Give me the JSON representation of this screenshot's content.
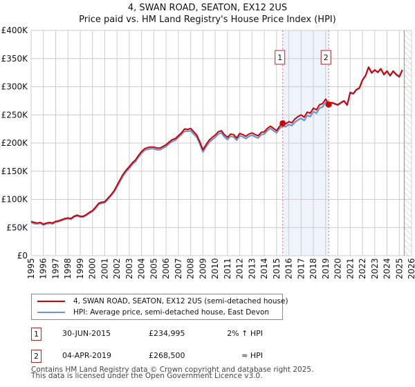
{
  "chart_data": {
    "type": "line",
    "title": "4, SWAN ROAD, SEATON, EX12 2US",
    "subtitle": "Price paid vs. HM Land Registry's House Price Index (HPI)",
    "xlabel": "",
    "ylabel": "",
    "xlim": [
      1995,
      2026
    ],
    "ylim": [
      0,
      400000
    ],
    "grid": true,
    "x_ticks": [
      "1995",
      "1996",
      "1997",
      "1998",
      "1999",
      "2000",
      "2001",
      "2002",
      "2003",
      "2004",
      "2005",
      "2006",
      "2007",
      "2008",
      "2009",
      "2010",
      "2011",
      "2012",
      "2013",
      "2014",
      "2015",
      "2016",
      "2017",
      "2018",
      "2019",
      "2020",
      "2021",
      "2022",
      "2023",
      "2024",
      "2025",
      "2026"
    ],
    "y_ticks": [
      {
        "value": 0,
        "label": "£0"
      },
      {
        "value": 50000,
        "label": "£50K"
      },
      {
        "value": 100000,
        "label": "£100K"
      },
      {
        "value": 150000,
        "label": "£150K"
      },
      {
        "value": 200000,
        "label": "£200K"
      },
      {
        "value": 250000,
        "label": "£250K"
      },
      {
        "value": 300000,
        "label": "£300K"
      },
      {
        "value": 350000,
        "label": "£350K"
      },
      {
        "value": 400000,
        "label": "£400K"
      }
    ],
    "series": [
      {
        "name": "4, SWAN ROAD, SEATON, EX12 2US (semi-detached house)",
        "color": "#cc0000",
        "x": [
          1995.0,
          1995.25,
          1995.5,
          1995.75,
          1996.0,
          1996.25,
          1996.5,
          1996.75,
          1997.0,
          1997.25,
          1997.5,
          1997.75,
          1998.0,
          1998.25,
          1998.5,
          1998.75,
          1999.0,
          1999.25,
          1999.5,
          1999.75,
          2000.0,
          2000.25,
          2000.5,
          2000.75,
          2001.0,
          2001.25,
          2001.5,
          2001.75,
          2002.0,
          2002.25,
          2002.5,
          2002.75,
          2003.0,
          2003.25,
          2003.5,
          2003.75,
          2004.0,
          2004.25,
          2004.5,
          2004.75,
          2005.0,
          2005.25,
          2005.5,
          2005.75,
          2006.0,
          2006.25,
          2006.5,
          2006.75,
          2007.0,
          2007.25,
          2007.5,
          2007.75,
          2008.0,
          2008.25,
          2008.5,
          2008.75,
          2009.0,
          2009.25,
          2009.5,
          2009.75,
          2010.0,
          2010.25,
          2010.5,
          2010.75,
          2011.0,
          2011.25,
          2011.5,
          2011.75,
          2012.0,
          2012.25,
          2012.5,
          2012.75,
          2013.0,
          2013.25,
          2013.5,
          2013.75,
          2014.0,
          2014.25,
          2014.5,
          2014.75,
          2015.0,
          2015.25,
          2015.5,
          2015.75,
          2016.0,
          2016.25,
          2016.5,
          2016.75,
          2017.0,
          2017.25,
          2017.5,
          2017.75,
          2018.0,
          2018.25,
          2018.5,
          2018.75,
          2019.0,
          2019.25,
          2019.5,
          2019.75,
          2020.0,
          2020.25,
          2020.5,
          2020.75,
          2021.0,
          2021.25,
          2021.5,
          2021.75,
          2022.0,
          2022.25,
          2022.5,
          2022.75,
          2023.0,
          2023.25,
          2023.5,
          2023.75,
          2024.0,
          2024.25,
          2024.5,
          2024.75,
          2025.0,
          2025.25
        ],
        "values": [
          61000,
          59000,
          58000,
          59000,
          56000,
          58000,
          59000,
          58000,
          61000,
          62000,
          64000,
          66000,
          67000,
          66000,
          70000,
          72000,
          70000,
          70000,
          73000,
          77000,
          80000,
          86000,
          93000,
          95000,
          96000,
          102000,
          108000,
          115000,
          125000,
          135000,
          145000,
          152000,
          158000,
          165000,
          170000,
          178000,
          185000,
          190000,
          192000,
          193000,
          193000,
          191000,
          191000,
          194000,
          197000,
          202000,
          206000,
          208000,
          213000,
          218000,
          225000,
          224000,
          226000,
          220000,
          214000,
          202000,
          188000,
          197000,
          205000,
          210000,
          214000,
          220000,
          222000,
          215000,
          210000,
          216000,
          215000,
          209000,
          217000,
          215000,
          212000,
          216000,
          218000,
          215000,
          213000,
          219000,
          220000,
          226000,
          230000,
          226000,
          222000,
          230000,
          235000,
          234000,
          238000,
          236000,
          243000,
          247000,
          250000,
          246000,
          255000,
          253000,
          262000,
          259000,
          268000,
          270000,
          278000,
          268500,
          272000,
          270000,
          268000,
          272000,
          275000,
          268000,
          290000,
          288000,
          295000,
          298000,
          312000,
          320000,
          335000,
          325000,
          330000,
          326000,
          332000,
          322000,
          328000,
          320000,
          328000,
          322000,
          318000,
          330000
        ]
      },
      {
        "name": "HPI: Average price, semi-detached house, East Devon",
        "color": "#6a95d4",
        "x": [
          1995.0,
          1995.25,
          1995.5,
          1995.75,
          1996.0,
          1996.25,
          1996.5,
          1996.75,
          1997.0,
          1997.25,
          1997.5,
          1997.75,
          1998.0,
          1998.25,
          1998.5,
          1998.75,
          1999.0,
          1999.25,
          1999.5,
          1999.75,
          2000.0,
          2000.25,
          2000.5,
          2000.75,
          2001.0,
          2001.25,
          2001.5,
          2001.75,
          2002.0,
          2002.25,
          2002.5,
          2002.75,
          2003.0,
          2003.25,
          2003.5,
          2003.75,
          2004.0,
          2004.25,
          2004.5,
          2004.75,
          2005.0,
          2005.25,
          2005.5,
          2005.75,
          2006.0,
          2006.25,
          2006.5,
          2006.75,
          2007.0,
          2007.25,
          2007.5,
          2007.75,
          2008.0,
          2008.25,
          2008.5,
          2008.75,
          2009.0,
          2009.25,
          2009.5,
          2009.75,
          2010.0,
          2010.25,
          2010.5,
          2010.75,
          2011.0,
          2011.25,
          2011.5,
          2011.75,
          2012.0,
          2012.25,
          2012.5,
          2012.75,
          2013.0,
          2013.25,
          2013.5,
          2013.75,
          2014.0,
          2014.25,
          2014.5,
          2014.75,
          2015.0,
          2015.25,
          2015.5,
          2015.75,
          2016.0,
          2016.25,
          2016.5,
          2016.75,
          2017.0,
          2017.25,
          2017.5,
          2017.75,
          2018.0,
          2018.25,
          2018.5,
          2018.75,
          2019.0,
          2019.25,
          2019.5,
          2019.75,
          2020.0,
          2020.25,
          2020.5,
          2020.75,
          2021.0,
          2021.25,
          2021.5,
          2021.75,
          2022.0,
          2022.25,
          2022.5,
          2022.75,
          2023.0,
          2023.25,
          2023.5,
          2023.75,
          2024.0,
          2024.25,
          2024.5,
          2024.75,
          2025.0,
          2025.25
        ],
        "values": [
          59000,
          57000,
          56500,
          57500,
          54500,
          56500,
          57500,
          56500,
          59500,
          60500,
          62500,
          64500,
          65500,
          64500,
          68500,
          70500,
          68500,
          68500,
          71500,
          75500,
          78500,
          84000,
          91000,
          93000,
          94000,
          100000,
          106000,
          113000,
          122000,
          132000,
          142000,
          149000,
          155000,
          162000,
          167000,
          175000,
          182000,
          187000,
          189000,
          190000,
          190000,
          188000,
          188000,
          191000,
          194000,
          199000,
          203000,
          205000,
          210000,
          215000,
          221000,
          221000,
          222000,
          216000,
          210000,
          198000,
          184000,
          193000,
          201000,
          206000,
          210000,
          216000,
          218000,
          211000,
          206000,
          212000,
          211000,
          205000,
          213000,
          211000,
          208000,
          212000,
          214000,
          211000,
          209000,
          215000,
          216000,
          222000,
          226000,
          222000,
          218000,
          226000,
          230000,
          229000,
          233000,
          231000,
          237000,
          241000,
          244000,
          240000,
          249000,
          247000,
          256000,
          253000,
          262000,
          264000,
          272000,
          267000,
          271000,
          269000,
          267000,
          271000,
          274000,
          267000,
          289000,
          287000,
          294000,
          297000,
          311000,
          319000,
          334000,
          324000,
          329000,
          325000,
          331000,
          321000,
          327000,
          319000,
          327000,
          321000,
          317000,
          329000
        ]
      }
    ],
    "annotations": [
      {
        "label": "1",
        "x": 2015.5,
        "y": 234995
      },
      {
        "label": "2",
        "x": 2019.25,
        "y": 268500
      }
    ],
    "shaded_region": {
      "x_start": 2015.5,
      "x_end": 2019.25
    },
    "hatched_region": {
      "x_start": 2025.4,
      "x_end": 2026
    },
    "legend_position": "below"
  },
  "legend": {
    "items": [
      {
        "label": "4, SWAN ROAD, SEATON, EX12 2US (semi-detached house)",
        "color": "#cc0000"
      },
      {
        "label": "HPI: Average price, semi-detached house, East Devon",
        "color": "#6a95d4"
      }
    ]
  },
  "sales": [
    {
      "num": "1",
      "date": "30-JUN-2015",
      "price": "£234,995",
      "hpi": "2% ↑ HPI"
    },
    {
      "num": "2",
      "date": "04-APR-2019",
      "price": "£268,500",
      "hpi": "≈ HPI"
    }
  ],
  "footer": {
    "line1": "Contains HM Land Registry data © Crown copyright and database right 2025.",
    "line2": "This data is licensed under the Open Government Licence v3.0."
  }
}
